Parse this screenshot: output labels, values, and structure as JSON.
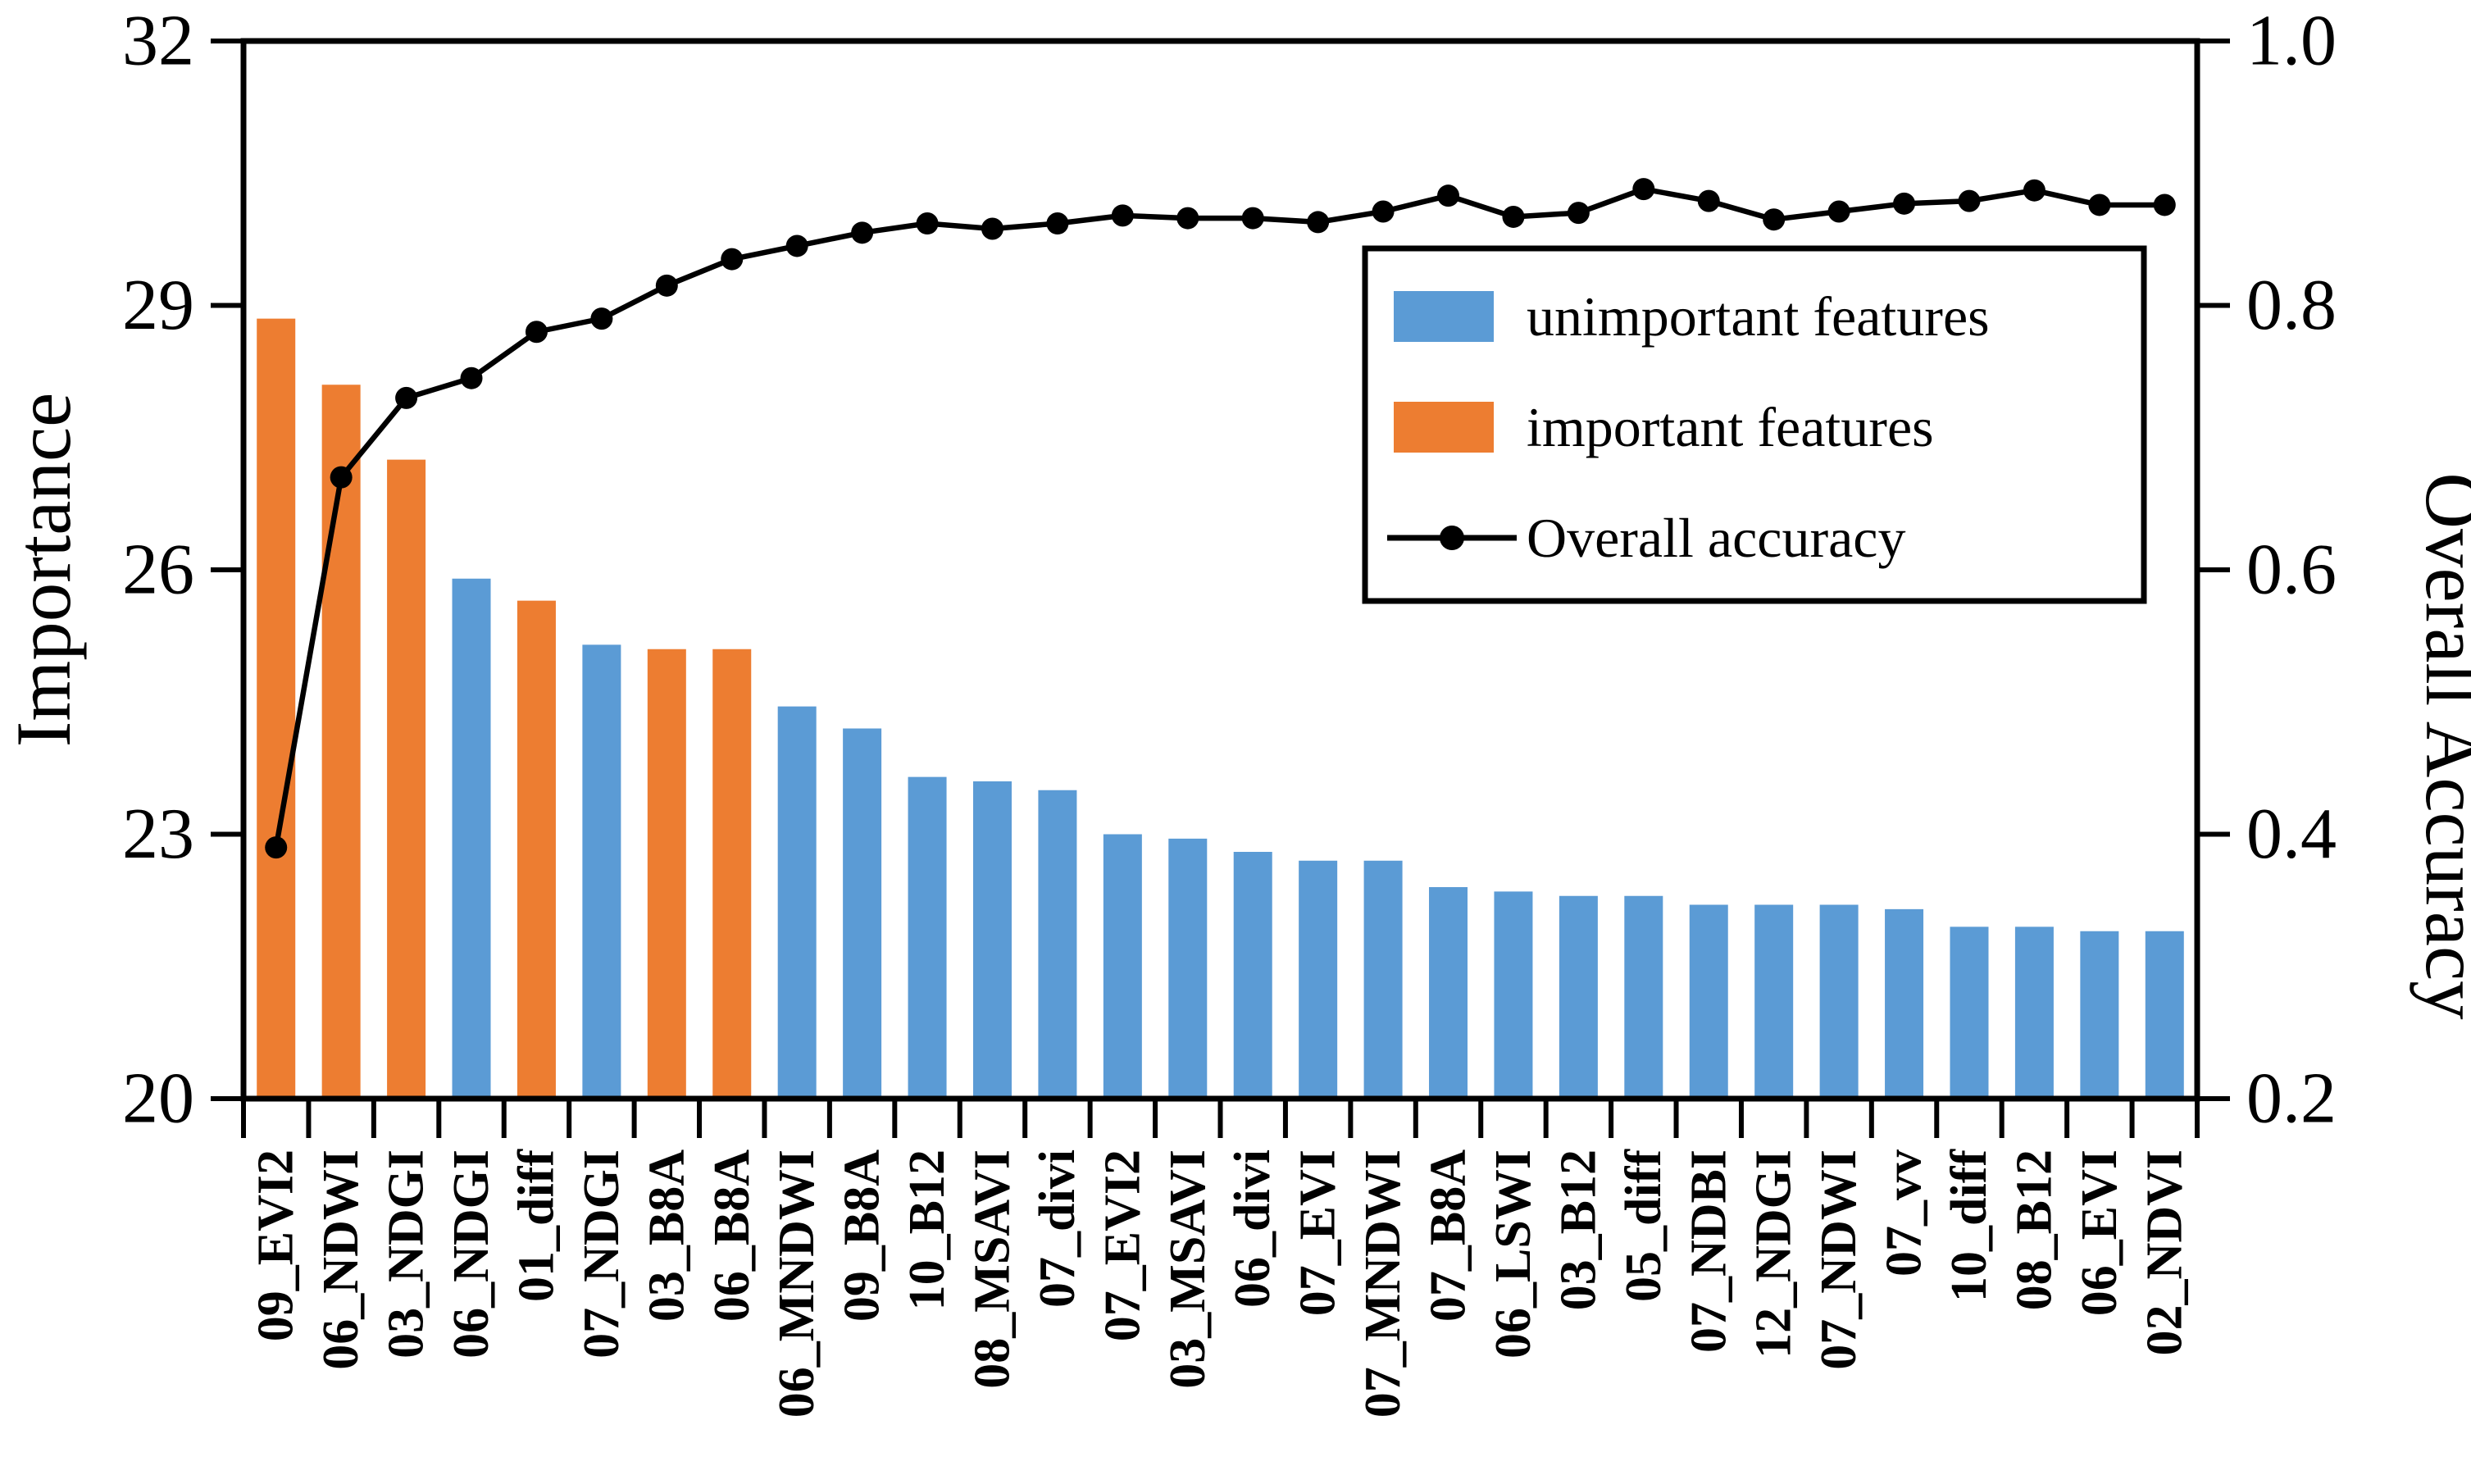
{
  "chart_data": {
    "type": "bar+line",
    "title": "",
    "categories": [
      "09_EVI2",
      "06_NDWI",
      "03_NDGI",
      "06_NDGI",
      "01_diff",
      "07_NDGI",
      "03_B8A",
      "06_B8A",
      "06_MNDWI",
      "09_B8A",
      "10_B12",
      "08_MSAVI",
      "07_divi",
      "07_EVI2",
      "03_MSAVI",
      "06_divi",
      "07_EVI",
      "07_MNDWI",
      "07_B8A",
      "06_LSWI",
      "03_B12",
      "05_diff",
      "07_NDBI",
      "12_NDGI",
      "07_NDWI",
      "07_vv",
      "10_diff",
      "08_B12",
      "06_EVI",
      "02_NDVI"
    ],
    "series": [
      {
        "name": "Importance",
        "type": "bar",
        "axis": "left",
        "values": [
          28.85,
          28.1,
          27.25,
          25.9,
          25.65,
          25.15,
          25.1,
          25.1,
          24.45,
          24.2,
          23.65,
          23.6,
          23.5,
          23.0,
          22.95,
          22.8,
          22.7,
          22.7,
          22.4,
          22.35,
          22.3,
          22.3,
          22.2,
          22.2,
          22.2,
          22.15,
          21.95,
          21.95,
          21.9,
          21.9
        ],
        "important_flags": [
          1,
          1,
          1,
          0,
          1,
          0,
          1,
          1,
          0,
          0,
          0,
          0,
          0,
          0,
          0,
          0,
          0,
          0,
          0,
          0,
          0,
          0,
          0,
          0,
          0,
          0,
          0,
          0,
          0,
          0
        ]
      },
      {
        "name": "Overall accuracy",
        "type": "line",
        "axis": "right",
        "values": [
          0.39,
          0.67,
          0.73,
          0.745,
          0.78,
          0.79,
          0.815,
          0.835,
          0.845,
          0.855,
          0.862,
          0.858,
          0.862,
          0.868,
          0.866,
          0.866,
          0.863,
          0.871,
          0.883,
          0.867,
          0.87,
          0.888,
          0.879,
          0.865,
          0.871,
          0.877,
          0.879,
          0.887,
          0.876,
          0.876
        ]
      }
    ],
    "left_axis": {
      "label": "Importance",
      "min": 20,
      "max": 32,
      "tick_values": [
        32,
        29,
        26,
        23,
        20
      ],
      "tick_labels": [
        "32",
        "29",
        "26",
        "23",
        "20"
      ]
    },
    "right_axis": {
      "label": "Overall Accuracy",
      "min": 0.2,
      "max": 1.0,
      "tick_values": [
        1.0,
        0.8,
        0.6,
        0.4,
        0.2
      ],
      "tick_labels": [
        "1.0",
        "0.8",
        "0.6",
        "0.4",
        "0.2"
      ]
    },
    "legend": {
      "position": "upper right",
      "items": [
        {
          "swatch": "blue-rect",
          "label": "unimportant features",
          "color": "#5B9BD5"
        },
        {
          "swatch": "orange-rect",
          "label": "important features",
          "color": "#ED7D31"
        },
        {
          "swatch": "line-dot",
          "label": "Overall accuracy",
          "color": "#000000"
        }
      ]
    },
    "colors": {
      "unimportant": "#5B9BD5",
      "important": "#ED7D31",
      "line": "#000000",
      "background": "#ffffff"
    },
    "grid": false
  }
}
